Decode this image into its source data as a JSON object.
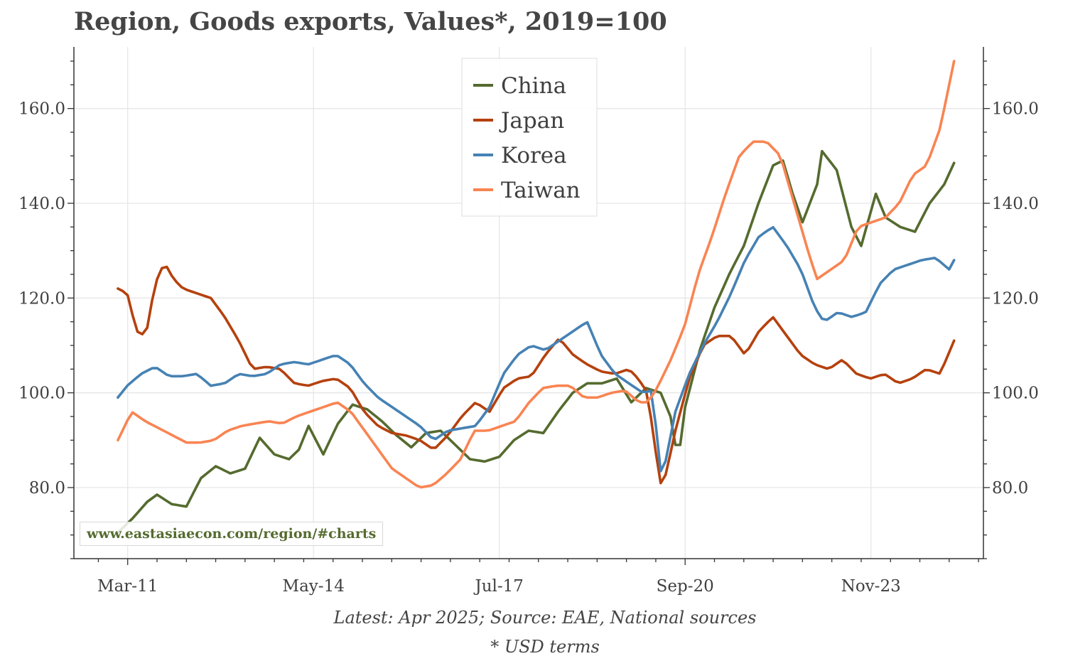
{
  "title": "Region, Goods exports, Values*, 2019=100",
  "source_note": "Latest: Apr 2025; Source: EAE, National sources",
  "usd_note": "* USD terms",
  "watermark": "www.eastasiaecon.com/region/#charts",
  "colors": {
    "China": "#556b2f",
    "Japan": "#b5410e",
    "Korea": "#4682b4",
    "Taiwan": "#f98452",
    "grid": "#e6e6e6",
    "axis": "#333333"
  },
  "chart_data": {
    "type": "line",
    "title": "Region, Goods exports, Values*, 2019=100",
    "x_unit": "month",
    "x_start": "2011-01",
    "x_end": "2025-04",
    "xlim": [
      "2010-04",
      "2025-10"
    ],
    "ylim": [
      65,
      173
    ],
    "y_ticks": [
      80.0,
      100.0,
      120.0,
      140.0,
      160.0
    ],
    "y_tick_labels": [
      "80.0",
      "100.0",
      "120.0",
      "140.0",
      "160.0"
    ],
    "x_ticks": [
      "2011-03",
      "2014-05",
      "2017-07",
      "2020-09",
      "2023-11"
    ],
    "x_tick_labels": [
      "Mar-11",
      "May-14",
      "Jul-17",
      "Sep-20",
      "Nov-23"
    ],
    "grid": true,
    "secondary_y_axis_mirrored": true,
    "legend": {
      "position": "top-center",
      "entries": [
        "China",
        "Japan",
        "Korea",
        "Taiwan"
      ]
    },
    "series": [
      {
        "name": "China",
        "anchors": [
          [
            "2011-01",
            70.5
          ],
          [
            "2011-04",
            73.5
          ],
          [
            "2011-07",
            77
          ],
          [
            "2011-09",
            78.5
          ],
          [
            "2011-12",
            76.5
          ],
          [
            "2012-03",
            76
          ],
          [
            "2012-06",
            82
          ],
          [
            "2012-09",
            84.5
          ],
          [
            "2012-12",
            83
          ],
          [
            "2013-03",
            84
          ],
          [
            "2013-06",
            90.5
          ],
          [
            "2013-09",
            87
          ],
          [
            "2013-12",
            86
          ],
          [
            "2014-02",
            88
          ],
          [
            "2014-04",
            93
          ],
          [
            "2014-07",
            87
          ],
          [
            "2014-10",
            93.5
          ],
          [
            "2015-01",
            97.5
          ],
          [
            "2015-04",
            96.5
          ],
          [
            "2015-07",
            94
          ],
          [
            "2015-10",
            91
          ],
          [
            "2016-01",
            88.5
          ],
          [
            "2016-04",
            91.5
          ],
          [
            "2016-07",
            92
          ],
          [
            "2016-10",
            89
          ],
          [
            "2017-01",
            86
          ],
          [
            "2017-04",
            85.5
          ],
          [
            "2017-07",
            86.5
          ],
          [
            "2017-10",
            90
          ],
          [
            "2018-01",
            92
          ],
          [
            "2018-04",
            91.5
          ],
          [
            "2018-07",
            96
          ],
          [
            "2018-10",
            100
          ],
          [
            "2019-01",
            102
          ],
          [
            "2019-04",
            102
          ],
          [
            "2019-07",
            103
          ],
          [
            "2019-10",
            98
          ],
          [
            "2020-01",
            101
          ],
          [
            "2020-04",
            100
          ],
          [
            "2020-06",
            95
          ],
          [
            "2020-07",
            89
          ],
          [
            "2020-08",
            89
          ],
          [
            "2020-09",
            97
          ],
          [
            "2020-12",
            109
          ],
          [
            "2021-03",
            118
          ],
          [
            "2021-06",
            125
          ],
          [
            "2021-09",
            131
          ],
          [
            "2021-12",
            140
          ],
          [
            "2022-03",
            148
          ],
          [
            "2022-05",
            149
          ],
          [
            "2022-07",
            142
          ],
          [
            "2022-09",
            136
          ],
          [
            "2022-12",
            144
          ],
          [
            "2023-01",
            151
          ],
          [
            "2023-04",
            147
          ],
          [
            "2023-07",
            135
          ],
          [
            "2023-09",
            131
          ],
          [
            "2023-12",
            142
          ],
          [
            "2024-02",
            137
          ],
          [
            "2024-05",
            135
          ],
          [
            "2024-08",
            134
          ],
          [
            "2024-11",
            140
          ],
          [
            "2025-02",
            144
          ],
          [
            "2025-04",
            148.5
          ]
        ]
      },
      {
        "name": "Japan",
        "anchors": [
          [
            "2011-01",
            122
          ],
          [
            "2011-03",
            121
          ],
          [
            "2011-05",
            113
          ],
          [
            "2011-07",
            112
          ],
          [
            "2011-09",
            123
          ],
          [
            "2011-11",
            127.5
          ],
          [
            "2012-01",
            124
          ],
          [
            "2012-03",
            122
          ],
          [
            "2012-06",
            121
          ],
          [
            "2012-09",
            120
          ],
          [
            "2012-12",
            116
          ],
          [
            "2013-03",
            111
          ],
          [
            "2013-06",
            105
          ],
          [
            "2013-09",
            105.5
          ],
          [
            "2013-12",
            105
          ],
          [
            "2014-03",
            102
          ],
          [
            "2014-06",
            101.5
          ],
          [
            "2014-09",
            102.5
          ],
          [
            "2014-12",
            103
          ],
          [
            "2015-03",
            101
          ],
          [
            "2015-06",
            96
          ],
          [
            "2015-09",
            93
          ],
          [
            "2015-12",
            91.5
          ],
          [
            "2016-03",
            91
          ],
          [
            "2016-06",
            90
          ],
          [
            "2016-09",
            88
          ],
          [
            "2016-12",
            91
          ],
          [
            "2017-03",
            95
          ],
          [
            "2017-06",
            98
          ],
          [
            "2017-09",
            96
          ],
          [
            "2017-12",
            101
          ],
          [
            "2018-03",
            103
          ],
          [
            "2018-06",
            103.5
          ],
          [
            "2018-09",
            108
          ],
          [
            "2018-12",
            111.5
          ],
          [
            "2019-03",
            108
          ],
          [
            "2019-06",
            106
          ],
          [
            "2019-09",
            104.5
          ],
          [
            "2019-12",
            104
          ],
          [
            "2020-03",
            105
          ],
          [
            "2020-05",
            103
          ],
          [
            "2020-07",
            100
          ],
          [
            "2020-09",
            86
          ],
          [
            "2020-10",
            80
          ],
          [
            "2020-11",
            83
          ],
          [
            "2021-01",
            92
          ],
          [
            "2021-04",
            103
          ],
          [
            "2021-07",
            110
          ],
          [
            "2021-10",
            112
          ],
          [
            "2022-01",
            112
          ],
          [
            "2022-04",
            108
          ],
          [
            "2022-07",
            113
          ],
          [
            "2022-10",
            116
          ],
          [
            "2023-01",
            112
          ],
          [
            "2023-04",
            108
          ],
          [
            "2023-07",
            106
          ],
          [
            "2023-10",
            105
          ],
          [
            "2024-01",
            107
          ],
          [
            "2024-04",
            104
          ],
          [
            "2024-07",
            103
          ],
          [
            "2024-10",
            104
          ],
          [
            "2025-01",
            102
          ],
          [
            "2025-04",
            103
          ],
          [
            "2025-07",
            105
          ],
          [
            "2025-10",
            104
          ],
          [
            "2026-01",
            111
          ]
        ]
      },
      {
        "name": "Korea",
        "anchors": [
          [
            "2011-01",
            99
          ],
          [
            "2011-03",
            101.5
          ],
          [
            "2011-06",
            104
          ],
          [
            "2011-09",
            105.5
          ],
          [
            "2011-12",
            103.5
          ],
          [
            "2012-03",
            103.5
          ],
          [
            "2012-06",
            104
          ],
          [
            "2012-09",
            101.5
          ],
          [
            "2012-12",
            102
          ],
          [
            "2013-03",
            104
          ],
          [
            "2013-06",
            103.5
          ],
          [
            "2013-09",
            104
          ],
          [
            "2013-12",
            106
          ],
          [
            "2014-03",
            106.5
          ],
          [
            "2014-06",
            106
          ],
          [
            "2014-09",
            107
          ],
          [
            "2014-12",
            108
          ],
          [
            "2015-03",
            106
          ],
          [
            "2015-06",
            102
          ],
          [
            "2015-09",
            99
          ],
          [
            "2015-12",
            97
          ],
          [
            "2016-03",
            95
          ],
          [
            "2016-06",
            93
          ],
          [
            "2016-09",
            90
          ],
          [
            "2016-12",
            92
          ],
          [
            "2017-03",
            92.5
          ],
          [
            "2017-06",
            93
          ],
          [
            "2017-09",
            97
          ],
          [
            "2017-12",
            104
          ],
          [
            "2018-03",
            108
          ],
          [
            "2018-06",
            110
          ],
          [
            "2018-09",
            109
          ],
          [
            "2018-12",
            111
          ],
          [
            "2019-03",
            113
          ],
          [
            "2019-06",
            115
          ],
          [
            "2019-09",
            108
          ],
          [
            "2019-12",
            104
          ],
          [
            "2020-03",
            102
          ],
          [
            "2020-06",
            100
          ],
          [
            "2020-08",
            100.5
          ],
          [
            "2020-10",
            82
          ],
          [
            "2020-11",
            86
          ],
          [
            "2021-01",
            96
          ],
          [
            "2021-04",
            104
          ],
          [
            "2021-07",
            110
          ],
          [
            "2021-10",
            115
          ],
          [
            "2022-01",
            121
          ],
          [
            "2022-04",
            128
          ],
          [
            "2022-07",
            133
          ],
          [
            "2022-10",
            135
          ],
          [
            "2023-01",
            131
          ],
          [
            "2023-04",
            126
          ],
          [
            "2023-07",
            118
          ],
          [
            "2023-09",
            115
          ],
          [
            "2023-12",
            117
          ],
          [
            "2024-03",
            116
          ],
          [
            "2024-06",
            117
          ],
          [
            "2024-09",
            123
          ],
          [
            "2024-12",
            126
          ],
          [
            "2025-03",
            127
          ],
          [
            "2025-06",
            128
          ],
          [
            "2025-09",
            128.5
          ],
          [
            "2025-12",
            126
          ],
          [
            "2026-01",
            128
          ]
        ]
      },
      {
        "name": "Taiwan",
        "anchors": [
          [
            "2011-01",
            90
          ],
          [
            "2011-04",
            96
          ],
          [
            "2011-07",
            94
          ],
          [
            "2011-10",
            92.5
          ],
          [
            "2012-01",
            91
          ],
          [
            "2012-04",
            89.5
          ],
          [
            "2012-07",
            89.5
          ],
          [
            "2012-10",
            90
          ],
          [
            "2013-01",
            92
          ],
          [
            "2013-04",
            93
          ],
          [
            "2013-07",
            93.5
          ],
          [
            "2013-10",
            94
          ],
          [
            "2014-01",
            93.5
          ],
          [
            "2014-04",
            95
          ],
          [
            "2014-07",
            96
          ],
          [
            "2014-10",
            97
          ],
          [
            "2015-01",
            98
          ],
          [
            "2015-04",
            96
          ],
          [
            "2015-07",
            92
          ],
          [
            "2015-10",
            88
          ],
          [
            "2016-01",
            84
          ],
          [
            "2016-04",
            82
          ],
          [
            "2016-07",
            80
          ],
          [
            "2016-10",
            80.5
          ],
          [
            "2017-01",
            83
          ],
          [
            "2017-04",
            86
          ],
          [
            "2017-07",
            92
          ],
          [
            "2017-10",
            92
          ],
          [
            "2018-01",
            93
          ],
          [
            "2018-04",
            94
          ],
          [
            "2018-07",
            98
          ],
          [
            "2018-10",
            101
          ],
          [
            "2019-01",
            101.5
          ],
          [
            "2019-04",
            101.5
          ],
          [
            "2019-07",
            99
          ],
          [
            "2019-10",
            99
          ],
          [
            "2020-01",
            100
          ],
          [
            "2020-04",
            100.5
          ],
          [
            "2020-07",
            98
          ],
          [
            "2020-09",
            98
          ],
          [
            "2020-11",
            101
          ],
          [
            "2021-02",
            107
          ],
          [
            "2021-05",
            114
          ],
          [
            "2021-08",
            125
          ],
          [
            "2021-11",
            133
          ],
          [
            "2022-02",
            142
          ],
          [
            "2022-05",
            150
          ],
          [
            "2022-08",
            153
          ],
          [
            "2022-11",
            153
          ],
          [
            "2023-02",
            150
          ],
          [
            "2023-05",
            140
          ],
          [
            "2023-08",
            130
          ],
          [
            "2023-10",
            124
          ],
          [
            "2024-01",
            126
          ],
          [
            "2024-04",
            128
          ],
          [
            "2024-07",
            135
          ],
          [
            "2024-10",
            136
          ],
          [
            "2025-01",
            137
          ],
          [
            "2025-04",
            140
          ],
          [
            "2025-07",
            146
          ],
          [
            "2025-10",
            148
          ],
          [
            "2026-01",
            156
          ],
          [
            "2026-04",
            170
          ]
        ]
      }
    ]
  }
}
